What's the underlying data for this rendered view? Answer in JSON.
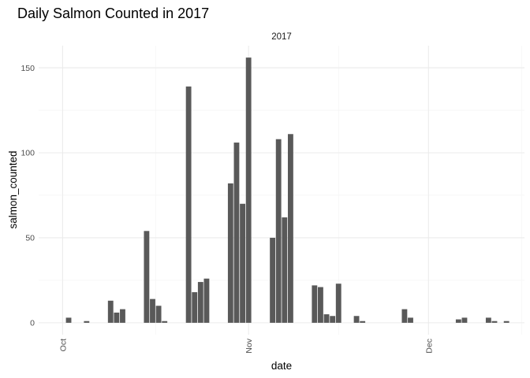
{
  "chart_data": {
    "type": "bar",
    "title": "Daily Salmon Counted in 2017",
    "facet_label": "2017",
    "xlabel": "date",
    "ylabel": "salmon_counted",
    "x_ticks": [
      {
        "date": "2017-10-01",
        "label": "Oct"
      },
      {
        "date": "2017-11-01",
        "label": "Nov"
      },
      {
        "date": "2017-12-01",
        "label": "Dec"
      }
    ],
    "y_ticks": [
      0,
      50,
      100,
      150
    ],
    "xlim": [
      "2017-09-27",
      "2017-12-17"
    ],
    "ylim": [
      -7,
      163
    ],
    "grid": true,
    "bar_color": "#595959",
    "data": [
      {
        "date": "2017-10-02",
        "value": 3
      },
      {
        "date": "2017-10-05",
        "value": 1
      },
      {
        "date": "2017-10-09",
        "value": 13
      },
      {
        "date": "2017-10-10",
        "value": 6
      },
      {
        "date": "2017-10-11",
        "value": 8
      },
      {
        "date": "2017-10-15",
        "value": 54
      },
      {
        "date": "2017-10-16",
        "value": 14
      },
      {
        "date": "2017-10-17",
        "value": 10
      },
      {
        "date": "2017-10-18",
        "value": 1
      },
      {
        "date": "2017-10-22",
        "value": 139
      },
      {
        "date": "2017-10-23",
        "value": 18
      },
      {
        "date": "2017-10-24",
        "value": 24
      },
      {
        "date": "2017-10-25",
        "value": 26
      },
      {
        "date": "2017-10-29",
        "value": 82
      },
      {
        "date": "2017-10-30",
        "value": 106
      },
      {
        "date": "2017-10-31",
        "value": 70
      },
      {
        "date": "2017-11-01",
        "value": 156
      },
      {
        "date": "2017-11-05",
        "value": 50
      },
      {
        "date": "2017-11-06",
        "value": 108
      },
      {
        "date": "2017-11-07",
        "value": 62
      },
      {
        "date": "2017-11-08",
        "value": 111
      },
      {
        "date": "2017-11-12",
        "value": 22
      },
      {
        "date": "2017-11-13",
        "value": 21
      },
      {
        "date": "2017-11-14",
        "value": 5
      },
      {
        "date": "2017-11-15",
        "value": 4
      },
      {
        "date": "2017-11-16",
        "value": 23
      },
      {
        "date": "2017-11-19",
        "value": 4
      },
      {
        "date": "2017-11-20",
        "value": 1
      },
      {
        "date": "2017-11-27",
        "value": 8
      },
      {
        "date": "2017-11-28",
        "value": 3
      },
      {
        "date": "2017-12-06",
        "value": 2
      },
      {
        "date": "2017-12-07",
        "value": 3
      },
      {
        "date": "2017-12-11",
        "value": 3
      },
      {
        "date": "2017-12-12",
        "value": 1
      },
      {
        "date": "2017-12-14",
        "value": 1
      }
    ]
  }
}
